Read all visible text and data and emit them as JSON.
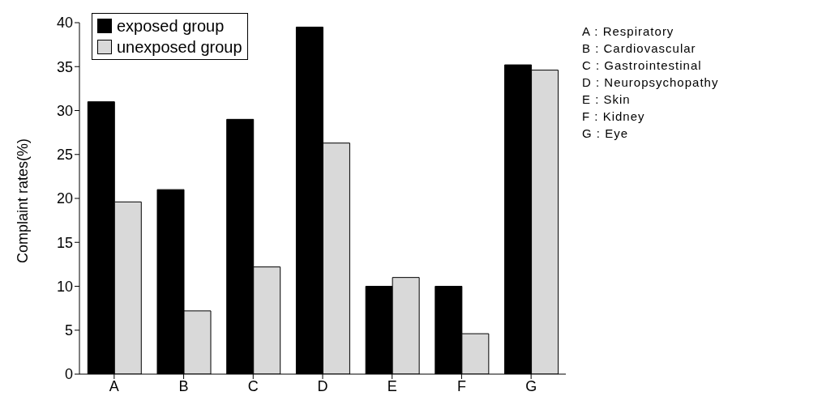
{
  "chart_data": {
    "type": "bar",
    "ylabel": "Complaint rates(%)",
    "categories": [
      "A",
      "B",
      "C",
      "D",
      "E",
      "F",
      "G"
    ],
    "series": [
      {
        "name": "exposed group",
        "color": "#000000",
        "values": [
          31,
          21,
          29,
          39.5,
          10,
          10,
          35.2
        ]
      },
      {
        "name": "unexposed group",
        "color": "#d9d9d9",
        "values": [
          19.6,
          7.2,
          12.2,
          26.3,
          11,
          4.6,
          34.6
        ]
      }
    ],
    "ylim": [
      0,
      40
    ],
    "yticks": [
      0,
      5,
      10,
      15,
      20,
      25,
      30,
      35,
      40
    ],
    "grid": false,
    "legend": "top left",
    "annotations": [
      "A : Respiratory",
      "B : Cardiovascular",
      "C : Gastrointestinal",
      "D : Neuropsychopathy",
      "E : Skin",
      "F : Kidney",
      "G : Eye"
    ]
  }
}
